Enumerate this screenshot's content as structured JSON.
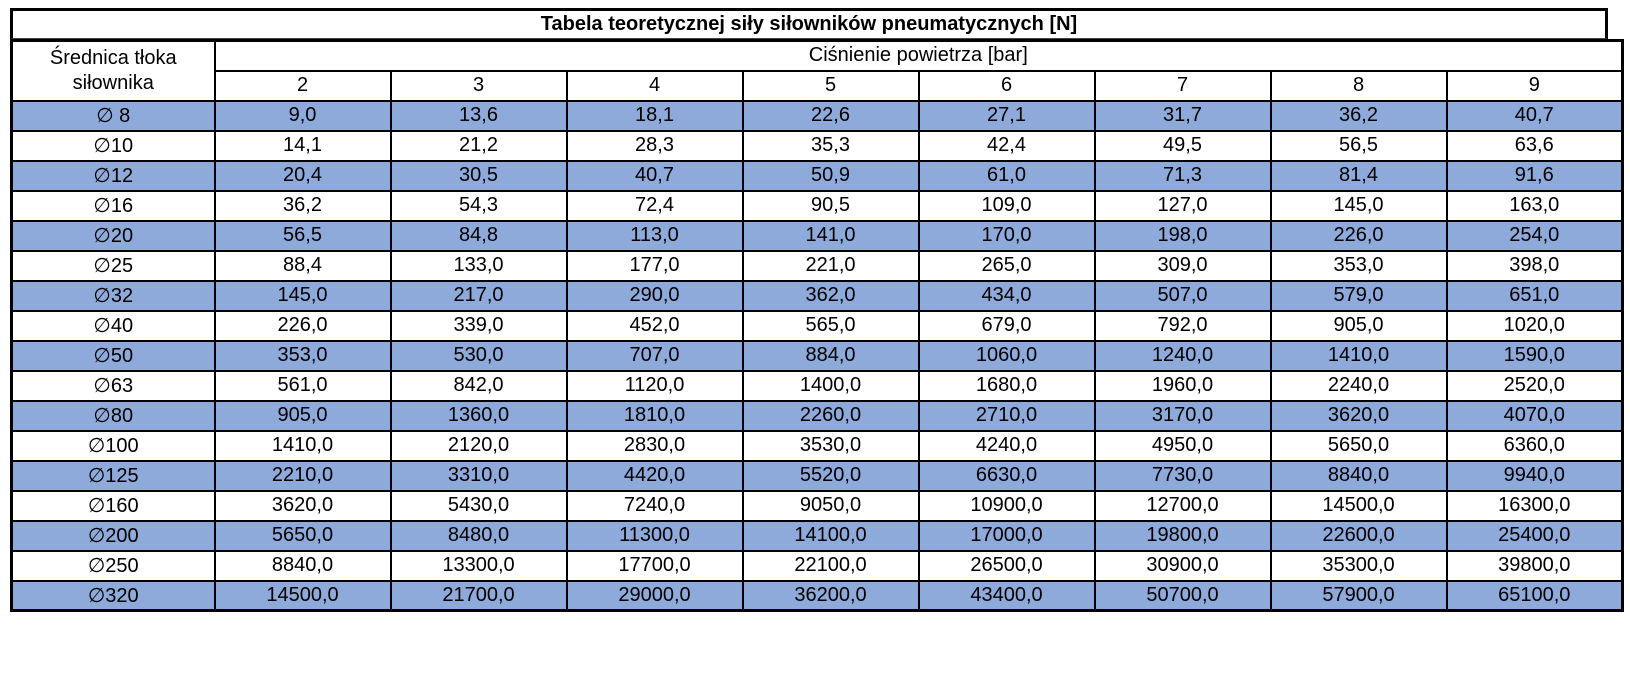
{
  "table": {
    "title": "Tabela teoretycznej siły siłowników pneumatycznych [N]",
    "row_header": "Średnica tłoka siłownika",
    "col_group_header": "Ciśnienie powietrza [bar]",
    "pressures": [
      "2",
      "3",
      "4",
      "5",
      "6",
      "7",
      "8",
      "9"
    ],
    "rows": [
      {
        "diameter": "∅ 8",
        "highlight": true,
        "values": [
          "9,0",
          "13,6",
          "18,1",
          "22,6",
          "27,1",
          "31,7",
          "36,2",
          "40,7"
        ]
      },
      {
        "diameter": "∅10",
        "highlight": false,
        "values": [
          "14,1",
          "21,2",
          "28,3",
          "35,3",
          "42,4",
          "49,5",
          "56,5",
          "63,6"
        ]
      },
      {
        "diameter": "∅12",
        "highlight": true,
        "values": [
          "20,4",
          "30,5",
          "40,7",
          "50,9",
          "61,0",
          "71,3",
          "81,4",
          "91,6"
        ]
      },
      {
        "diameter": "∅16",
        "highlight": false,
        "values": [
          "36,2",
          "54,3",
          "72,4",
          "90,5",
          "109,0",
          "127,0",
          "145,0",
          "163,0"
        ]
      },
      {
        "diameter": "∅20",
        "highlight": true,
        "values": [
          "56,5",
          "84,8",
          "113,0",
          "141,0",
          "170,0",
          "198,0",
          "226,0",
          "254,0"
        ]
      },
      {
        "diameter": "∅25",
        "highlight": false,
        "values": [
          "88,4",
          "133,0",
          "177,0",
          "221,0",
          "265,0",
          "309,0",
          "353,0",
          "398,0"
        ]
      },
      {
        "diameter": "∅32",
        "highlight": true,
        "values": [
          "145,0",
          "217,0",
          "290,0",
          "362,0",
          "434,0",
          "507,0",
          "579,0",
          "651,0"
        ]
      },
      {
        "diameter": "∅40",
        "highlight": false,
        "values": [
          "226,0",
          "339,0",
          "452,0",
          "565,0",
          "679,0",
          "792,0",
          "905,0",
          "1020,0"
        ]
      },
      {
        "diameter": "∅50",
        "highlight": true,
        "values": [
          "353,0",
          "530,0",
          "707,0",
          "884,0",
          "1060,0",
          "1240,0",
          "1410,0",
          "1590,0"
        ]
      },
      {
        "diameter": "∅63",
        "highlight": false,
        "values": [
          "561,0",
          "842,0",
          "1120,0",
          "1400,0",
          "1680,0",
          "1960,0",
          "2240,0",
          "2520,0"
        ]
      },
      {
        "diameter": "∅80",
        "highlight": true,
        "values": [
          "905,0",
          "1360,0",
          "1810,0",
          "2260,0",
          "2710,0",
          "3170,0",
          "3620,0",
          "4070,0"
        ]
      },
      {
        "diameter": "∅100",
        "highlight": false,
        "values": [
          "1410,0",
          "2120,0",
          "2830,0",
          "3530,0",
          "4240,0",
          "4950,0",
          "5650,0",
          "6360,0"
        ]
      },
      {
        "diameter": "∅125",
        "highlight": true,
        "values": [
          "2210,0",
          "3310,0",
          "4420,0",
          "5520,0",
          "6630,0",
          "7730,0",
          "8840,0",
          "9940,0"
        ]
      },
      {
        "diameter": "∅160",
        "highlight": false,
        "values": [
          "3620,0",
          "5430,0",
          "7240,0",
          "9050,0",
          "10900,0",
          "12700,0",
          "14500,0",
          "16300,0"
        ]
      },
      {
        "diameter": "∅200",
        "highlight": true,
        "values": [
          "5650,0",
          "8480,0",
          "11300,0",
          "14100,0",
          "17000,0",
          "19800,0",
          "22600,0",
          "25400,0"
        ]
      },
      {
        "diameter": "∅250",
        "highlight": false,
        "values": [
          "8840,0",
          "13300,0",
          "17700,0",
          "22100,0",
          "26500,0",
          "30900,0",
          "35300,0",
          "39800,0"
        ]
      },
      {
        "diameter": "∅320",
        "highlight": true,
        "values": [
          "14500,0",
          "21700,0",
          "29000,0",
          "36200,0",
          "43400,0",
          "50700,0",
          "57900,0",
          "65100,0"
        ]
      }
    ]
  },
  "colors": {
    "highlight_row": "#8EAADB",
    "border": "#000000",
    "text": "#000000",
    "background": "#FFFFFF"
  }
}
